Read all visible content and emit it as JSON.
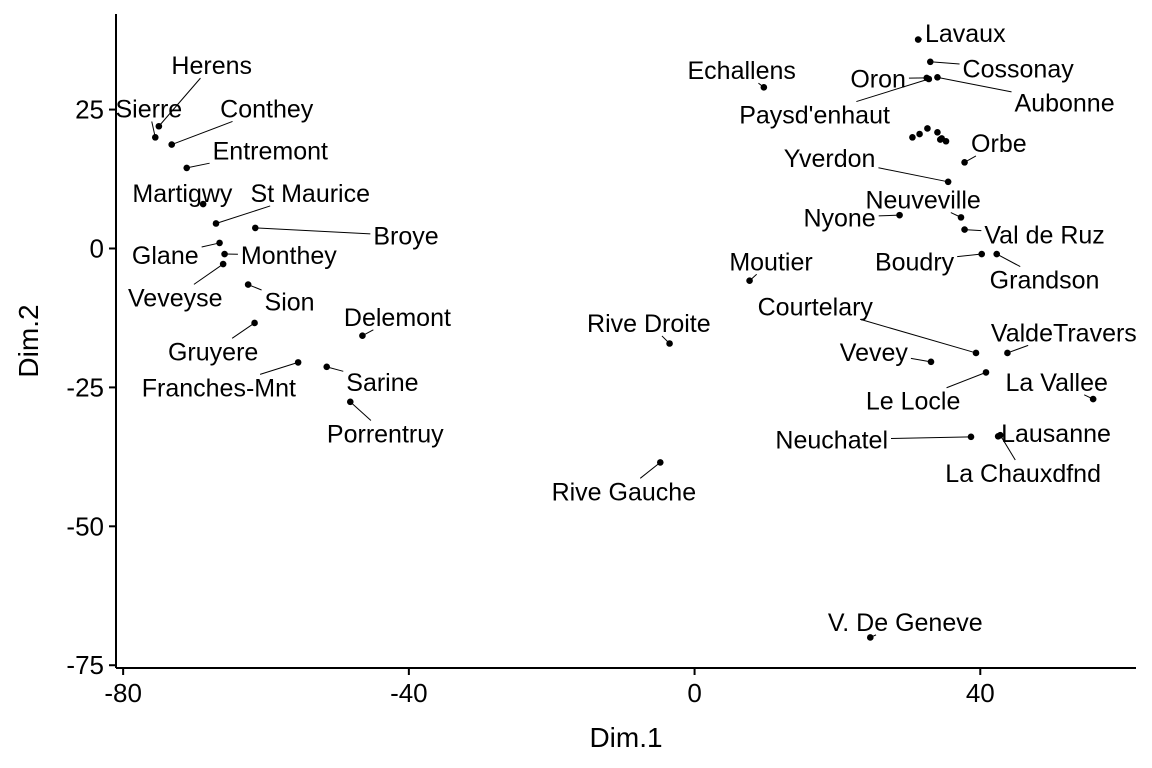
{
  "chart_data": {
    "type": "scatter",
    "xlabel": "Dim.1",
    "ylabel": "Dim.2",
    "xlim": [
      -81,
      61.8
    ],
    "ylim": [
      -75.5,
      42.2
    ],
    "xticks": [
      -80,
      -40,
      0,
      40
    ],
    "yticks": [
      -75,
      -50,
      -25,
      0,
      25
    ],
    "xtick_labels": [
      "-80",
      "-40",
      "0",
      "40"
    ],
    "ytick_labels": [
      "-75",
      "-50",
      "-25",
      "0",
      "25"
    ],
    "grid": false,
    "legend": "none",
    "point_color": "#000000",
    "points": [
      {
        "label": "Herens",
        "x": -75.0,
        "y": 22.0,
        "lx": -67.6,
        "ly": 33.0
      },
      {
        "label": "Sierre",
        "x": -75.5,
        "y": 20.0,
        "lx": -76.4,
        "ly": 25.2
      },
      {
        "label": "Conthey",
        "x": -73.2,
        "y": 18.7,
        "lx": -59.9,
        "ly": 25.2
      },
      {
        "label": "Entremont",
        "x": -71.1,
        "y": 14.5,
        "lx": -59.4,
        "ly": 17.6
      },
      {
        "label": "Martigwy",
        "x": -68.8,
        "y": 8.0,
        "lx": -71.7,
        "ly": 10.0
      },
      {
        "label": "St Maurice",
        "x": -67.0,
        "y": 4.5,
        "lx": -53.8,
        "ly": 10.0
      },
      {
        "label": "Broye",
        "x": -61.5,
        "y": 3.7,
        "lx": -40.4,
        "ly": 2.3
      },
      {
        "label": "Glane",
        "x": -66.5,
        "y": 1.0,
        "lx": -74.1,
        "ly": -1.2
      },
      {
        "label": "Monthey",
        "x": -65.8,
        "y": -1.0,
        "lx": -56.8,
        "ly": -1.2
      },
      {
        "label": "Veveyse",
        "x": -66.0,
        "y": -2.8,
        "lx": -72.7,
        "ly": -8.8
      },
      {
        "label": "Sion",
        "x": -62.5,
        "y": -6.5,
        "lx": -56.7,
        "ly": -9.5
      },
      {
        "label": "Delemont",
        "x": -46.5,
        "y": -15.7,
        "lx": -41.6,
        "ly": -12.3
      },
      {
        "label": "Gruyere",
        "x": -61.6,
        "y": -13.4,
        "lx": -67.4,
        "ly": -18.5
      },
      {
        "label": "Franches-Mnt",
        "x": -55.5,
        "y": -20.5,
        "lx": -66.6,
        "ly": -25.0
      },
      {
        "label": "Sarine",
        "x": -51.5,
        "y": -21.3,
        "lx": -43.7,
        "ly": -24.0
      },
      {
        "label": "Porrentruy",
        "x": -48.2,
        "y": -27.6,
        "lx": -43.3,
        "ly": -33.3
      },
      {
        "label": "Rive Droite",
        "x": -3.5,
        "y": -17.1,
        "lx": -6.4,
        "ly": -13.4
      },
      {
        "label": "Rive Gauche",
        "x": -4.8,
        "y": -38.5,
        "lx": -9.9,
        "ly": -43.7
      },
      {
        "label": "V. De Geneve",
        "x": 24.6,
        "y": -70.0,
        "lx": 29.5,
        "ly": -67.2
      },
      {
        "label": "Echallens",
        "x": 9.7,
        "y": 29.0,
        "lx": 6.6,
        "ly": 32.1
      },
      {
        "label": "Lavaux",
        "x": 31.3,
        "y": 37.6,
        "lx": 37.9,
        "ly": 38.8
      },
      {
        "label": "Oron",
        "x": 32.5,
        "y": 30.7,
        "lx": 25.7,
        "ly": 30.6
      },
      {
        "label": "Cossonay",
        "x": 33.0,
        "y": 33.6,
        "lx": 45.3,
        "ly": 32.4
      },
      {
        "label": "Aubonne",
        "x": 34.0,
        "y": 30.8,
        "lx": 51.8,
        "ly": 26.3
      },
      {
        "label": "Paysd'enhaut",
        "x": 32.8,
        "y": 30.5,
        "lx": 16.8,
        "ly": 24.1
      },
      {
        "label": "Orbe",
        "x": 37.8,
        "y": 15.5,
        "lx": 42.6,
        "ly": 19.0
      },
      {
        "label": "Yverdon",
        "x": 35.5,
        "y": 12.0,
        "lx": 18.9,
        "ly": 16.3
      },
      {
        "label": "Neuveville",
        "x": 37.3,
        "y": 5.6,
        "lx": 32.0,
        "ly": 8.8
      },
      {
        "label": "Nyone",
        "x": 28.7,
        "y": 6.0,
        "lx": 20.3,
        "ly": 5.6
      },
      {
        "label": "Val de Ruz",
        "x": 37.8,
        "y": 3.4,
        "lx": 49.0,
        "ly": 2.5
      },
      {
        "label": "Boudry",
        "x": 40.2,
        "y": -1.0,
        "lx": 30.8,
        "ly": -2.3
      },
      {
        "label": "Grandson",
        "x": 42.3,
        "y": -1.0,
        "lx": 49.0,
        "ly": -5.6
      },
      {
        "label": "Moutier",
        "x": 7.7,
        "y": -5.8,
        "lx": 10.7,
        "ly": -2.3
      },
      {
        "label": "Courtelary",
        "x": 39.4,
        "y": -18.8,
        "lx": 16.9,
        "ly": -10.4
      },
      {
        "label": "ValdeTravers",
        "x": 43.8,
        "y": -18.8,
        "lx": 51.7,
        "ly": -15.1
      },
      {
        "label": "Vevey",
        "x": 33.1,
        "y": -20.4,
        "lx": 25.1,
        "ly": -18.6
      },
      {
        "label": "Le Locle",
        "x": 40.8,
        "y": -22.3,
        "lx": 30.6,
        "ly": -27.4
      },
      {
        "label": "La Vallee",
        "x": 55.8,
        "y": -27.1,
        "lx": 50.7,
        "ly": -24.0
      },
      {
        "label": "Neuchatel",
        "x": 38.7,
        "y": -33.9,
        "lx": 19.2,
        "ly": -34.4
      },
      {
        "label": "Lausanne",
        "x": 42.5,
        "y": -33.8,
        "lx": 50.6,
        "ly": -33.2
      },
      {
        "label": "La Chauxdfnd",
        "x": 42.8,
        "y": -33.6,
        "lx": 46.0,
        "ly": -40.4
      },
      {
        "label": "cluster-1",
        "x": 30.5,
        "y": 20.0,
        "lx": null,
        "ly": null
      },
      {
        "label": "cluster-2",
        "x": 31.5,
        "y": 20.6,
        "lx": null,
        "ly": null
      },
      {
        "label": "cluster-3",
        "x": 32.6,
        "y": 21.6,
        "lx": null,
        "ly": null
      },
      {
        "label": "cluster-4",
        "x": 34.0,
        "y": 20.9,
        "lx": null,
        "ly": null
      },
      {
        "label": "cluster-5",
        "x": 34.4,
        "y": 19.6,
        "lx": null,
        "ly": null
      },
      {
        "label": "cluster-6",
        "x": 35.2,
        "y": 19.3,
        "lx": null,
        "ly": null
      },
      {
        "label": "cluster-7",
        "x": 34.6,
        "y": 19.8,
        "lx": null,
        "ly": null
      }
    ]
  }
}
